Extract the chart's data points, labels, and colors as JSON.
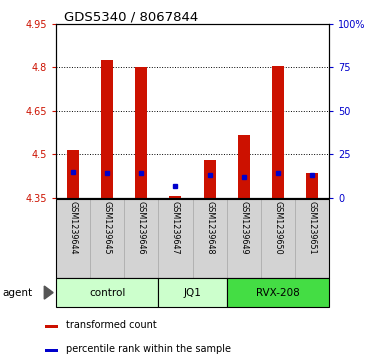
{
  "title": "GDS5340 / 8067844",
  "samples": [
    "GSM1239644",
    "GSM1239645",
    "GSM1239646",
    "GSM1239647",
    "GSM1239648",
    "GSM1239649",
    "GSM1239650",
    "GSM1239651"
  ],
  "transformed_counts": [
    4.515,
    4.825,
    4.8,
    4.356,
    4.48,
    4.565,
    4.805,
    4.435
  ],
  "percentile_ranks": [
    15,
    14,
    14,
    7,
    13,
    12,
    14,
    13
  ],
  "bar_bottom": 4.35,
  "ylim_min": 4.35,
  "ylim_max": 4.95,
  "yticks_left": [
    4.35,
    4.5,
    4.65,
    4.8,
    4.95
  ],
  "yticks_right_vals": [
    0,
    25,
    50,
    75,
    100
  ],
  "yticks_right_labels": [
    "0",
    "25",
    "50",
    "75",
    "100%"
  ],
  "groups": [
    {
      "label": "control",
      "indices": [
        0,
        1,
        2
      ],
      "color": "#ccffcc"
    },
    {
      "label": "JQ1",
      "indices": [
        3,
        4
      ],
      "color": "#ccffcc"
    },
    {
      "label": "RVX-208",
      "indices": [
        5,
        6,
        7
      ],
      "color": "#44dd44"
    }
  ],
  "bar_color": "#cc1100",
  "blue_color": "#0000cc",
  "tick_color_left": "#cc1100",
  "tick_color_right": "#0000cc",
  "legend_red_label": "transformed count",
  "legend_blue_label": "percentile rank within the sample",
  "agent_label": "agent",
  "bar_width": 0.35
}
